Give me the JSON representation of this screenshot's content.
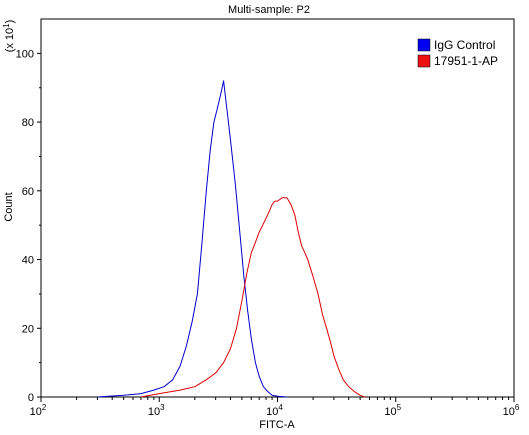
{
  "chart_data": {
    "type": "line",
    "title": "Multi-sample: P2",
    "xlabel": "FITC-A",
    "ylabel": "Count",
    "y_multiplier_label": "(x 10",
    "y_multiplier_exp": "1",
    "x_scale": "log",
    "xlim": [
      100,
      1000000
    ],
    "ylim": [
      0,
      110
    ],
    "x_ticks": [
      {
        "value": 100,
        "base": "10",
        "exp": "2"
      },
      {
        "value": 1000,
        "base": "10",
        "exp": "3"
      },
      {
        "value": 10000,
        "base": "10",
        "exp": "4"
      },
      {
        "value": 100000,
        "base": "10",
        "exp": "5"
      },
      {
        "value": 1000000,
        "base": "10",
        "exp": "6"
      }
    ],
    "y_ticks": [
      "0",
      "20",
      "40",
      "60",
      "80",
      "100"
    ],
    "legend_position": "top-right",
    "series": [
      {
        "name": "IgG Control",
        "color": "#0000cc",
        "swatch": "#0000ee",
        "points": [
          [
            300,
            0
          ],
          [
            500,
            0.5
          ],
          [
            700,
            1
          ],
          [
            900,
            2
          ],
          [
            1100,
            3
          ],
          [
            1300,
            5
          ],
          [
            1500,
            9
          ],
          [
            1700,
            15
          ],
          [
            1900,
            22
          ],
          [
            2100,
            30
          ],
          [
            2300,
            45
          ],
          [
            2500,
            60
          ],
          [
            2700,
            72
          ],
          [
            2900,
            80
          ],
          [
            3100,
            84
          ],
          [
            3300,
            88
          ],
          [
            3500,
            92
          ],
          [
            3700,
            85
          ],
          [
            4000,
            75
          ],
          [
            4400,
            62
          ],
          [
            4800,
            48
          ],
          [
            5200,
            35
          ],
          [
            5600,
            25
          ],
          [
            6000,
            17
          ],
          [
            6500,
            10
          ],
          [
            7000,
            6
          ],
          [
            7600,
            3
          ],
          [
            8300,
            1.5
          ],
          [
            9000,
            0.5
          ],
          [
            10000,
            0.2
          ],
          [
            12000,
            0
          ]
        ]
      },
      {
        "name": "17951-1-AP",
        "color": "#dd0000",
        "swatch": "#ee1111",
        "points": [
          [
            700,
            0
          ],
          [
            1000,
            1
          ],
          [
            1500,
            2
          ],
          [
            2000,
            3
          ],
          [
            2500,
            5
          ],
          [
            3000,
            7
          ],
          [
            3500,
            10
          ],
          [
            4000,
            14
          ],
          [
            4500,
            20
          ],
          [
            5000,
            28
          ],
          [
            5500,
            36
          ],
          [
            6000,
            42
          ],
          [
            6500,
            45
          ],
          [
            7000,
            48
          ],
          [
            7500,
            50
          ],
          [
            8000,
            52
          ],
          [
            8500,
            54
          ],
          [
            9000,
            56
          ],
          [
            9500,
            57
          ],
          [
            10000,
            57
          ],
          [
            11000,
            58
          ],
          [
            12000,
            58
          ],
          [
            13000,
            56
          ],
          [
            14000,
            53
          ],
          [
            15000,
            48
          ],
          [
            16000,
            44
          ],
          [
            17000,
            42
          ],
          [
            18000,
            40
          ],
          [
            20000,
            35
          ],
          [
            22000,
            30
          ],
          [
            24000,
            24
          ],
          [
            26000,
            20
          ],
          [
            28000,
            16
          ],
          [
            30000,
            12
          ],
          [
            33000,
            8
          ],
          [
            36000,
            5
          ],
          [
            40000,
            3
          ],
          [
            45000,
            1.5
          ],
          [
            50000,
            0.5
          ],
          [
            55000,
            0
          ]
        ]
      }
    ]
  }
}
